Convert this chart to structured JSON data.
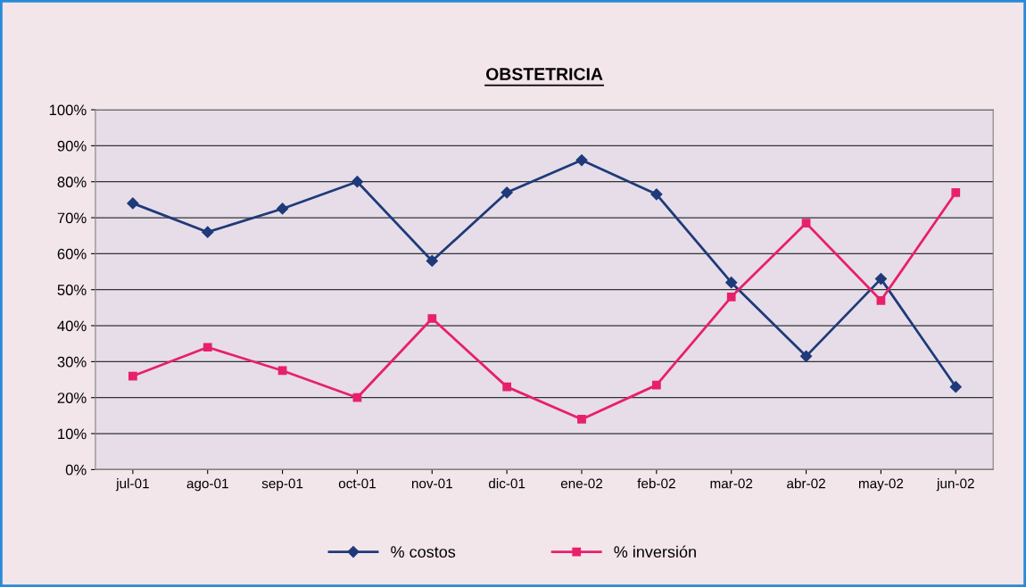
{
  "chart_data": {
    "type": "line",
    "title": "OBSTETRICIA",
    "categories": [
      "jul-01",
      "ago-01",
      "sep-01",
      "oct-01",
      "nov-01",
      "dic-01",
      "ene-02",
      "feb-02",
      "mar-02",
      "abr-02",
      "may-02",
      "jun-02"
    ],
    "series": [
      {
        "name": "% costos",
        "color": "#1f3a7a",
        "marker": "diamond",
        "values": [
          74,
          66,
          72.5,
          80,
          58,
          77,
          86,
          76.5,
          52,
          31.5,
          53,
          23
        ]
      },
      {
        "name": "% inversión",
        "color": "#e8206a",
        "marker": "square",
        "values": [
          26,
          34,
          27.5,
          20,
          42,
          23,
          14,
          23.5,
          48,
          68.5,
          47,
          77
        ]
      }
    ],
    "ylim": [
      0,
      100
    ],
    "yticks": [
      {
        "value": 0,
        "label": "0%"
      },
      {
        "value": 10,
        "label": "10%"
      },
      {
        "value": 20,
        "label": "20%"
      },
      {
        "value": 30,
        "label": "30%"
      },
      {
        "value": 40,
        "label": "40%"
      },
      {
        "value": 50,
        "label": "50%"
      },
      {
        "value": 60,
        "label": "60%"
      },
      {
        "value": 70,
        "label": "70%"
      },
      {
        "value": 80,
        "label": "80%"
      },
      {
        "value": 90,
        "label": "90%"
      },
      {
        "value": 100,
        "label": "100%"
      }
    ],
    "grid": "y",
    "legend": "bottom",
    "line_style": "solid"
  }
}
